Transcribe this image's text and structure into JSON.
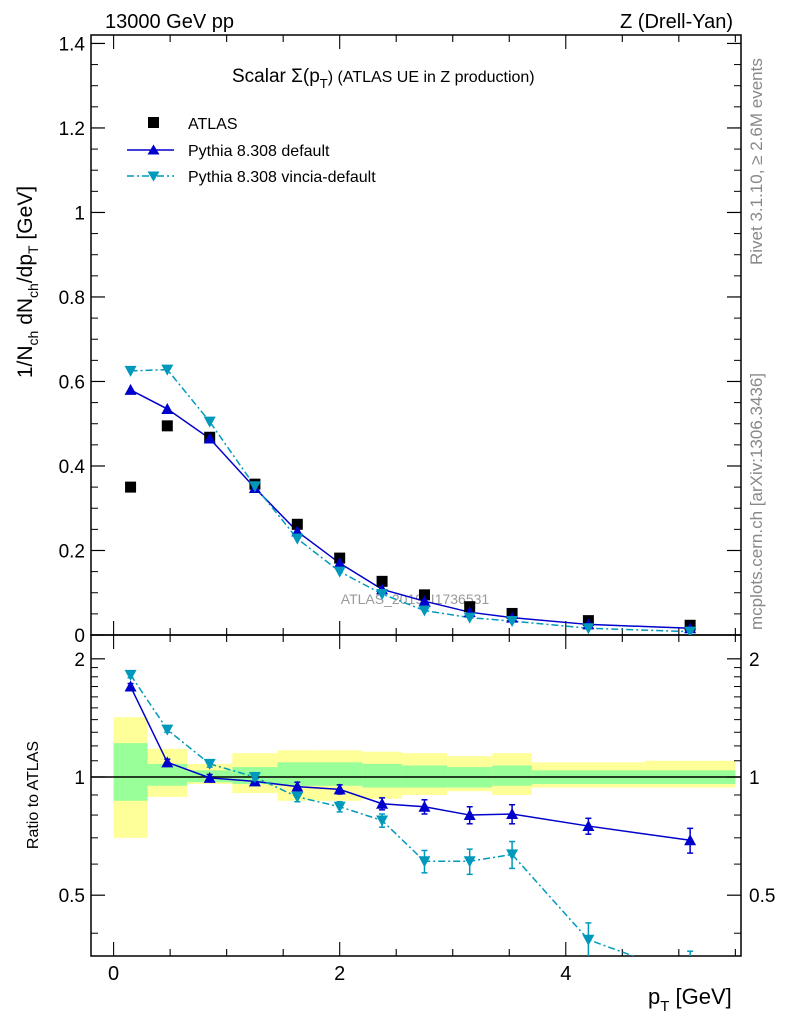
{
  "header": {
    "left": "13000 GeV pp",
    "right": "Z (Drell-Yan)"
  },
  "side_labels": {
    "rivet": "Rivet 3.1.10, ≥ 2.6M events",
    "mcplots": "mcplots.cern.ch [arXiv:1306.3436]"
  },
  "colors": {
    "data": "#000000",
    "default": "#0000cc",
    "vincia": "#0099bb",
    "band_inner": "#99ff99",
    "band_outer": "#ffff99"
  },
  "chart_data": [
    {
      "type": "scatter",
      "title_main": "Scalar Σ(p",
      "title_sub": "T",
      "title_tail": ") (ATLAS UE in Z production)",
      "ylabel_parts": [
        "1/N",
        "ch",
        " dN",
        "ch",
        "/dp",
        "T",
        " [GeV]"
      ],
      "watermark": "ATLAS_2019_I1736531",
      "xlim": [
        -0.2,
        5.55
      ],
      "ylim": [
        0,
        1.42
      ],
      "yticks": [
        "0",
        "0.2",
        "0.4",
        "0.6",
        "0.8",
        "1",
        "1.2",
        "1.4"
      ],
      "ytick_values": [
        0,
        0.2,
        0.4,
        0.6,
        0.8,
        1.0,
        1.2,
        1.4
      ],
      "legend_position": "top-left",
      "x": [
        0.15,
        0.475,
        0.85,
        1.25,
        1.625,
        2.0,
        2.375,
        2.75,
        3.15,
        3.525,
        4.2,
        5.1
      ],
      "series": [
        {
          "name": "ATLAS",
          "style": "square",
          "values": [
            0.35,
            0.495,
            0.468,
            0.357,
            0.262,
            0.182,
            0.127,
            0.095,
            0.067,
            0.051,
            0.034,
            0.023
          ]
        },
        {
          "name": "Pythia 8.308 default",
          "style": "line-triangle-up",
          "values": [
            0.58,
            0.535,
            0.465,
            0.348,
            0.245,
            0.17,
            0.108,
            0.08,
            0.054,
            0.041,
            0.025,
            0.016
          ]
        },
        {
          "name": "Pythia 8.308 vincia-default",
          "style": "dashdot-triangle-down",
          "values": [
            0.625,
            0.628,
            0.505,
            0.352,
            0.228,
            0.15,
            0.097,
            0.058,
            0.041,
            0.033,
            0.016,
            0.008
          ]
        }
      ]
    },
    {
      "type": "line",
      "ylabel": "Ratio to ATLAS",
      "xlabel_main": "p",
      "xlabel_sub": "T",
      "xlabel_tail": " [GeV]",
      "xlim": [
        -0.2,
        5.55
      ],
      "ylim": [
        0.35,
        2.3
      ],
      "xticks": [
        "0",
        "2",
        "4"
      ],
      "xtick_values": [
        0,
        2,
        4
      ],
      "yticks": [
        "0.5",
        "1",
        "2"
      ],
      "ytick_values": [
        0.5,
        1,
        2
      ],
      "x": [
        0.15,
        0.475,
        0.85,
        1.25,
        1.625,
        2.0,
        2.375,
        2.75,
        3.15,
        3.525,
        4.2,
        5.1
      ],
      "bins": [
        [
          0.0,
          0.3
        ],
        [
          0.3,
          0.65
        ],
        [
          0.65,
          1.05
        ],
        [
          1.05,
          1.45
        ],
        [
          1.45,
          1.8
        ],
        [
          1.8,
          2.2
        ],
        [
          2.2,
          2.55
        ],
        [
          2.55,
          2.95
        ],
        [
          2.95,
          3.35
        ],
        [
          3.35,
          3.7
        ],
        [
          3.7,
          4.7
        ],
        [
          4.7,
          5.5
        ]
      ],
      "band_inner": [
        [
          0.87,
          1.22
        ],
        [
          0.95,
          1.08
        ],
        [
          0.97,
          1.04
        ],
        [
          0.96,
          1.06
        ],
        [
          0.95,
          1.09
        ],
        [
          0.95,
          1.09
        ],
        [
          0.94,
          1.08
        ],
        [
          0.94,
          1.07
        ],
        [
          0.94,
          1.06
        ],
        [
          0.95,
          1.07
        ],
        [
          0.96,
          1.04
        ],
        [
          0.96,
          1.04
        ]
      ],
      "band_outer": [
        [
          0.7,
          1.42
        ],
        [
          0.89,
          1.18
        ],
        [
          0.96,
          1.08
        ],
        [
          0.91,
          1.15
        ],
        [
          0.87,
          1.17
        ],
        [
          0.87,
          1.17
        ],
        [
          0.88,
          1.16
        ],
        [
          0.9,
          1.15
        ],
        [
          0.92,
          1.13
        ],
        [
          0.9,
          1.15
        ],
        [
          0.94,
          1.09
        ],
        [
          0.94,
          1.1
        ]
      ],
      "series": [
        {
          "name": "Pythia 8.308 default",
          "style": "line-triangle-up",
          "values": [
            1.7,
            1.09,
            0.995,
            0.975,
            0.945,
            0.93,
            0.855,
            0.84,
            0.8,
            0.805,
            0.75,
            0.69
          ],
          "errors": [
            0.03,
            0.02,
            0.02,
            0.02,
            0.025,
            0.025,
            0.03,
            0.035,
            0.04,
            0.045,
            0.035,
            0.05
          ]
        },
        {
          "name": "Pythia 8.308 vincia-default",
          "style": "dashdot-triangle-down",
          "values": [
            1.82,
            1.32,
            1.08,
            1.0,
            0.89,
            0.84,
            0.775,
            0.61,
            0.61,
            0.635,
            0.385,
            0.31
          ],
          "errors": [
            0.03,
            0.02,
            0.02,
            0.02,
            0.025,
            0.025,
            0.03,
            0.04,
            0.045,
            0.05,
            0.04,
            0.05
          ]
        }
      ]
    }
  ]
}
